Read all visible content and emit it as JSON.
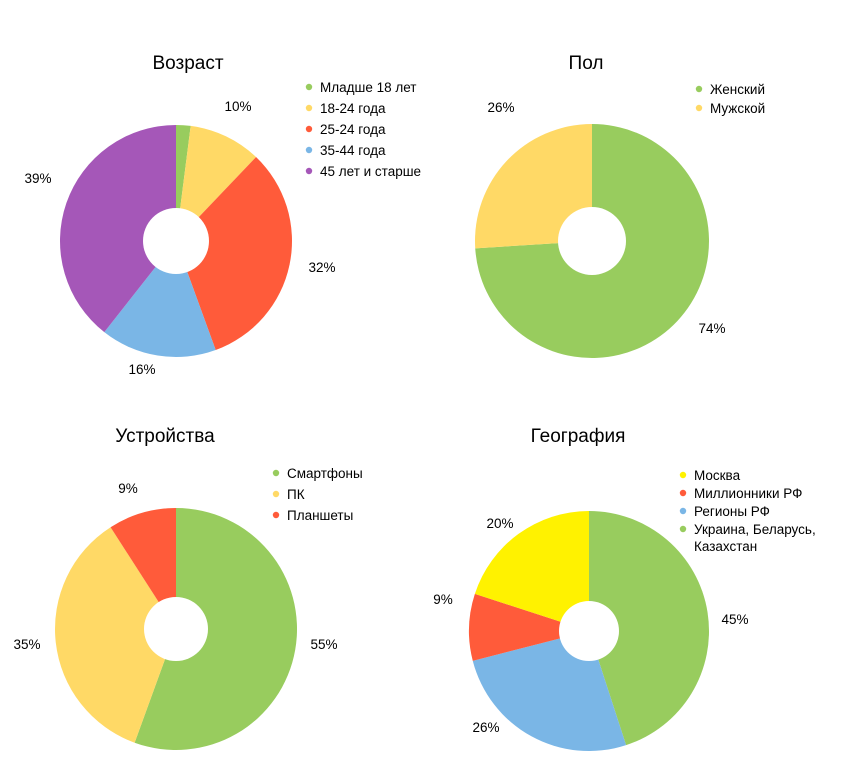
{
  "chart_data": [
    {
      "type": "pie",
      "donut": true,
      "title": "Возраст",
      "slices": [
        {
          "label": "Младше 18 лет",
          "value": 2,
          "data_label": "",
          "color": "#98CC5E"
        },
        {
          "label": "18-24 года",
          "value": 10,
          "data_label": "10%",
          "color": "#FFD966"
        },
        {
          "label": "25-24 года",
          "value": 32,
          "data_label": "32%",
          "color": "#FF5B3A"
        },
        {
          "label": "35-44 года",
          "value": 16,
          "data_label": "16%",
          "color": "#7AB6E6"
        },
        {
          "label": "45 лет и старше",
          "value": 39,
          "data_label": "39%",
          "color": "#A557B8"
        }
      ],
      "legend_position": "right"
    },
    {
      "type": "pie",
      "donut": true,
      "title": "Пол",
      "slices": [
        {
          "label": "Женский",
          "value": 74,
          "data_label": "74%",
          "color": "#98CC5E"
        },
        {
          "label": "Мужской",
          "value": 26,
          "data_label": "26%",
          "color": "#FFD966"
        }
      ],
      "legend_position": "right"
    },
    {
      "type": "pie",
      "donut": true,
      "title": "Устройства",
      "slices": [
        {
          "label": "Смартфоны",
          "value": 55,
          "data_label": "55%",
          "color": "#98CC5E"
        },
        {
          "label": "ПК",
          "value": 35,
          "data_label": "35%",
          "color": "#FFD966"
        },
        {
          "label": "Планшеты",
          "value": 9,
          "data_label": "9%",
          "color": "#FF5B3A"
        }
      ],
      "legend_position": "right"
    },
    {
      "type": "pie",
      "donut": true,
      "title": "География",
      "slices": [
        {
          "label": "Украина, Беларусь, Казахстан",
          "value": 45,
          "data_label": "45%",
          "color": "#98CC5E"
        },
        {
          "label": "Регионы РФ",
          "value": 26,
          "data_label": "26%",
          "color": "#7AB6E6"
        },
        {
          "label": "Миллионники РФ",
          "value": 9,
          "data_label": "9%",
          "color": "#FF5B3A"
        },
        {
          "label": "Москва",
          "value": 20,
          "data_label": "20%",
          "color": "#FFF200"
        }
      ],
      "legend": [
        "Москва",
        "Миллионники РФ",
        "Регионы РФ",
        "Украина, Беларусь, Казахстан"
      ],
      "legend_position": "right"
    }
  ]
}
